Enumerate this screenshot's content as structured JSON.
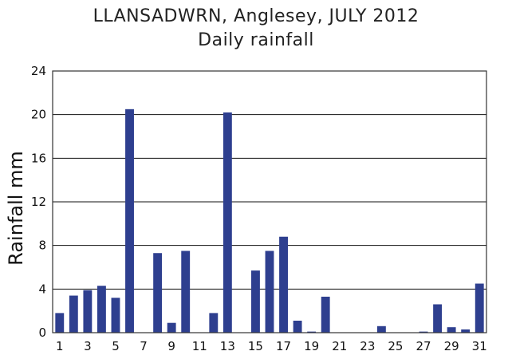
{
  "chart_data": {
    "type": "bar",
    "title": "LLANSADWRN, Anglesey, JULY 2012",
    "subtitle": "Daily rainfall",
    "ylabel": "Rainfall mm",
    "xlabel": "",
    "ylim": [
      0,
      24
    ],
    "yticks": [
      0,
      4,
      8,
      12,
      16,
      20,
      24
    ],
    "x": [
      1,
      2,
      3,
      4,
      5,
      6,
      7,
      8,
      9,
      10,
      11,
      12,
      13,
      14,
      15,
      16,
      17,
      18,
      19,
      20,
      21,
      22,
      23,
      24,
      25,
      26,
      27,
      28,
      29,
      30,
      31
    ],
    "xtick_labels": [
      1,
      3,
      5,
      7,
      9,
      11,
      13,
      15,
      17,
      19,
      21,
      23,
      25,
      27,
      29,
      31
    ],
    "values": [
      1.8,
      3.4,
      3.9,
      4.3,
      3.2,
      20.5,
      0,
      7.3,
      0.9,
      7.5,
      0,
      1.8,
      20.2,
      0,
      5.7,
      7.5,
      8.8,
      1.1,
      0.1,
      3.3,
      0,
      0,
      0,
      0.6,
      0,
      0,
      0.1,
      2.6,
      0.5,
      0.3,
      4.5
    ],
    "grid": "horizontal",
    "bar_color": "#2e3f8f"
  }
}
